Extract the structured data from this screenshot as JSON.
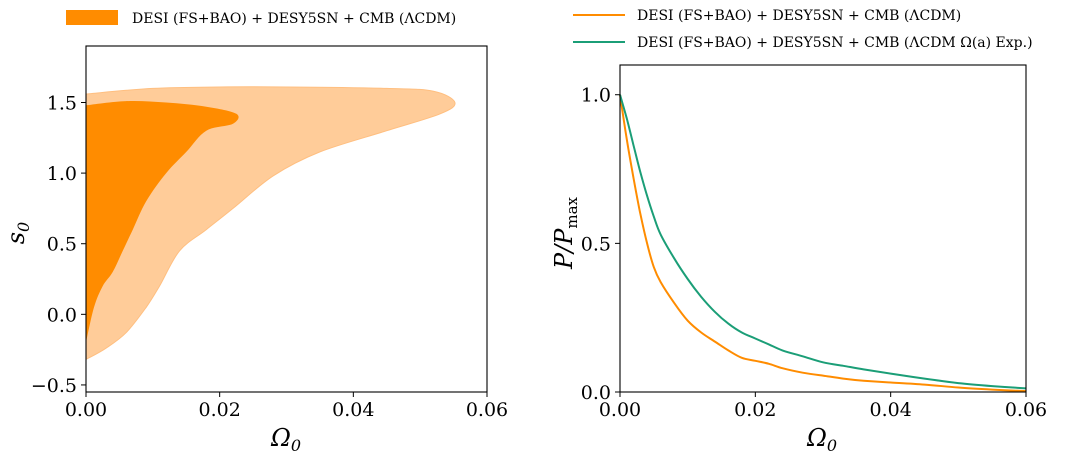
{
  "chart_data": [
    {
      "type": "contour",
      "xlabel": "Ω0",
      "ylabel": "s0",
      "xlim": [
        0,
        0.06
      ],
      "ylim": [
        -0.55,
        1.9
      ],
      "xticks": [
        "0.00",
        "0.02",
        "0.04",
        "0.06"
      ],
      "yticks": [
        "−0.5",
        "0.0",
        "0.5",
        "1.0",
        "1.5"
      ],
      "legend": {
        "label": "DESI (FS+BAO) + DESY5SN + CMB (ΛCDM)",
        "placement": "top",
        "color": "#ff8c00"
      },
      "contours": [
        {
          "level": "95%",
          "color": "#ffcc99",
          "points": [
            [
              0,
              1.56
            ],
            [
              0.01,
              1.6
            ],
            [
              0.02,
              1.61
            ],
            [
              0.03,
              1.61
            ],
            [
              0.045,
              1.6
            ],
            [
              0.052,
              1.58
            ],
            [
              0.0552,
              1.5
            ],
            [
              0.053,
              1.42
            ],
            [
              0.045,
              1.3
            ],
            [
              0.035,
              1.15
            ],
            [
              0.028,
              0.98
            ],
            [
              0.022,
              0.75
            ],
            [
              0.018,
              0.6
            ],
            [
              0.014,
              0.45
            ],
            [
              0.011,
              0.2
            ],
            [
              0.009,
              0.05
            ],
            [
              0.006,
              -0.13
            ],
            [
              0.003,
              -0.24
            ],
            [
              0,
              -0.32
            ]
          ]
        },
        {
          "level": "68%",
          "color": "#ff8c00",
          "points": [
            [
              0,
              1.48
            ],
            [
              0.006,
              1.51
            ],
            [
              0.012,
              1.5
            ],
            [
              0.018,
              1.47
            ],
            [
              0.0225,
              1.42
            ],
            [
              0.022,
              1.35
            ],
            [
              0.018,
              1.3
            ],
            [
              0.015,
              1.15
            ],
            [
              0.012,
              1.0
            ],
            [
              0.009,
              0.8
            ],
            [
              0.007,
              0.6
            ],
            [
              0.0055,
              0.45
            ],
            [
              0.004,
              0.3
            ],
            [
              0.0025,
              0.2
            ],
            [
              0.0012,
              0.05
            ],
            [
              0,
              -0.2
            ]
          ]
        }
      ]
    },
    {
      "type": "line",
      "xlabel": "Ω0",
      "ylabel": "P/Pmax",
      "xlim": [
        0,
        0.06
      ],
      "ylim": [
        0,
        1.1
      ],
      "xticks": [
        "0.00",
        "0.02",
        "0.04",
        "0.06"
      ],
      "yticks": [
        "0.0",
        "0.5",
        "1.0"
      ],
      "legend_placement": "top",
      "series": [
        {
          "name": "DESI (FS+BAO) + DESY5SN + CMB (ΛCDM)",
          "color": "#ff8c00",
          "x": [
            0,
            0.001,
            0.002,
            0.003,
            0.004,
            0.005,
            0.006,
            0.008,
            0.01,
            0.012,
            0.014,
            0.016,
            0.018,
            0.02,
            0.022,
            0.024,
            0.027,
            0.03,
            0.033,
            0.036,
            0.04,
            0.045,
            0.05,
            0.055,
            0.06
          ],
          "y": [
            1.0,
            0.85,
            0.72,
            0.6,
            0.5,
            0.42,
            0.37,
            0.3,
            0.24,
            0.2,
            0.17,
            0.14,
            0.115,
            0.105,
            0.095,
            0.08,
            0.065,
            0.055,
            0.045,
            0.038,
            0.032,
            0.025,
            0.015,
            0.008,
            0.003
          ]
        },
        {
          "name": "DESI (FS+BAO) + DESY5SN + CMB (ΛCDM Ω(a) Exp.)",
          "color": "#1b9e77",
          "x": [
            0,
            0.001,
            0.002,
            0.003,
            0.004,
            0.005,
            0.006,
            0.008,
            0.01,
            0.012,
            0.014,
            0.016,
            0.018,
            0.02,
            0.022,
            0.024,
            0.027,
            0.03,
            0.033,
            0.036,
            0.04,
            0.045,
            0.05,
            0.055,
            0.06
          ],
          "y": [
            1.0,
            0.92,
            0.83,
            0.74,
            0.66,
            0.59,
            0.53,
            0.45,
            0.38,
            0.32,
            0.27,
            0.23,
            0.2,
            0.18,
            0.16,
            0.14,
            0.12,
            0.1,
            0.088,
            0.076,
            0.062,
            0.045,
            0.03,
            0.02,
            0.012
          ]
        }
      ]
    }
  ]
}
